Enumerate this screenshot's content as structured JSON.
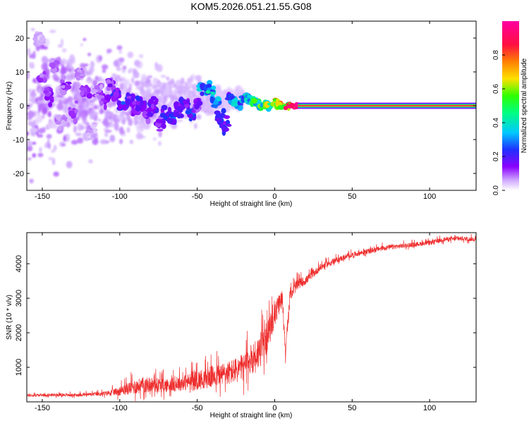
{
  "title": "KOM5.2026.051.21.55.G08",
  "chart_data": [
    {
      "type": "heatmap",
      "description_role": "spectrogram",
      "title": "KOM5.2026.051.21.55.G08",
      "xlabel": "Height of straight line (km)",
      "ylabel": "Frequency (Hz)",
      "xlim": [
        -160,
        130
      ],
      "ylim": [
        -25,
        25
      ],
      "xticks": [
        -150,
        -100,
        -50,
        0,
        50,
        100
      ],
      "yticks": [
        -20,
        -10,
        0,
        10,
        20
      ],
      "colorbar": {
        "label": "Normalized spectral amplitude",
        "range": [
          0,
          1
        ],
        "ticks": [
          "0.0",
          "0.2",
          "0.4",
          "0.6",
          "0.8"
        ],
        "colors": [
          "#ffffff",
          "#8b00ff",
          "#2030ff",
          "#00e0ff",
          "#00ff40",
          "#ffe000",
          "#ff8000",
          "#ff0060",
          "#ff00a0"
        ]
      },
      "features": {
        "noise_region_km": [
          -160,
          -30
        ],
        "transition_region_km": [
          -30,
          15
        ],
        "tone_region_km": [
          15,
          130
        ],
        "tone_frequency_hz": 0
      },
      "blobs": [
        {
          "x": -152,
          "y": 20,
          "a": 0.05
        },
        {
          "x": -150,
          "y": 8,
          "a": 0.1
        },
        {
          "x": -146,
          "y": 3,
          "a": 0.12
        },
        {
          "x": -142,
          "y": 12,
          "a": 0.08
        },
        {
          "x": -138,
          "y": -5,
          "a": 0.07
        },
        {
          "x": -135,
          "y": 6,
          "a": 0.12
        },
        {
          "x": -130,
          "y": -2,
          "a": 0.1
        },
        {
          "x": -126,
          "y": 9,
          "a": 0.09
        },
        {
          "x": -122,
          "y": 4,
          "a": 0.11
        },
        {
          "x": -118,
          "y": -8,
          "a": 0.06
        },
        {
          "x": -114,
          "y": 5,
          "a": 0.1
        },
        {
          "x": -110,
          "y": 2,
          "a": 0.12
        },
        {
          "x": -106,
          "y": 6,
          "a": 0.13
        },
        {
          "x": -102,
          "y": 3,
          "a": 0.2
        },
        {
          "x": -98,
          "y": 0,
          "a": 0.22
        },
        {
          "x": -94,
          "y": 2,
          "a": 0.18
        },
        {
          "x": -90,
          "y": -1,
          "a": 0.12
        },
        {
          "x": -86,
          "y": 1,
          "a": 0.2
        },
        {
          "x": -82,
          "y": -3,
          "a": 0.15
        },
        {
          "x": -78,
          "y": 0,
          "a": 0.16
        },
        {
          "x": -74,
          "y": -5,
          "a": 0.14
        },
        {
          "x": -70,
          "y": -2,
          "a": 0.2
        },
        {
          "x": -66,
          "y": -4,
          "a": 0.22
        },
        {
          "x": -62,
          "y": -1,
          "a": 0.16
        },
        {
          "x": -58,
          "y": 1,
          "a": 0.2
        },
        {
          "x": -54,
          "y": -2,
          "a": 0.22
        },
        {
          "x": -50,
          "y": 0,
          "a": 0.14
        },
        {
          "x": -46,
          "y": 5,
          "a": 0.3
        },
        {
          "x": -42,
          "y": 5,
          "a": 0.35
        },
        {
          "x": -38,
          "y": 1,
          "a": 0.28
        },
        {
          "x": -35,
          "y": -3,
          "a": 0.22
        },
        {
          "x": -32,
          "y": -6,
          "a": 0.2
        },
        {
          "x": -28,
          "y": 2,
          "a": 0.25
        },
        {
          "x": -24,
          "y": 1,
          "a": 0.3
        },
        {
          "x": -20,
          "y": 2,
          "a": 0.3
        },
        {
          "x": -16,
          "y": 2,
          "a": 0.4
        },
        {
          "x": -12,
          "y": 1,
          "a": 0.45
        },
        {
          "x": -8,
          "y": 0,
          "a": 0.5
        },
        {
          "x": -4,
          "y": 0,
          "a": 0.55
        },
        {
          "x": 0,
          "y": 1,
          "a": 0.6
        },
        {
          "x": 4,
          "y": 0,
          "a": 0.65
        },
        {
          "x": 8,
          "y": 0,
          "a": 0.7
        },
        {
          "x": 12,
          "y": 0,
          "a": 0.8
        }
      ]
    },
    {
      "type": "line",
      "description_role": "snr-trace",
      "xlabel": "Height of straight line (km)",
      "ylabel": "SNR (10 * v/v)",
      "xlim": [
        -160,
        130
      ],
      "ylim": [
        0,
        4900
      ],
      "xticks": [
        -150,
        -100,
        -50,
        0,
        50,
        100
      ],
      "yticks": [
        1000,
        2000,
        3000,
        4000
      ],
      "series": [
        {
          "name": "SNR",
          "color": "#ee2e2e",
          "x": [
            -160,
            -150,
            -140,
            -130,
            -120,
            -110,
            -100,
            -90,
            -80,
            -70,
            -60,
            -50,
            -40,
            -30,
            -20,
            -15,
            -10,
            -5,
            0,
            5,
            7,
            10,
            15,
            20,
            25,
            30,
            35,
            40,
            50,
            60,
            70,
            80,
            90,
            100,
            110,
            120,
            130
          ],
          "y": [
            180,
            190,
            200,
            190,
            210,
            230,
            300,
            420,
            480,
            450,
            520,
            600,
            700,
            800,
            950,
            1200,
            1400,
            1800,
            2500,
            3000,
            1400,
            3100,
            3400,
            3500,
            3700,
            3900,
            4000,
            4100,
            4250,
            4350,
            4450,
            4500,
            4550,
            4600,
            4700,
            4720,
            4700
          ],
          "spread": [
            80,
            80,
            90,
            90,
            100,
            120,
            250,
            450,
            450,
            400,
            450,
            550,
            650,
            700,
            800,
            900,
            1000,
            900,
            700,
            500,
            300,
            400,
            300,
            250,
            220,
            200,
            180,
            160,
            150,
            150,
            140,
            140,
            130,
            130,
            130,
            130,
            130
          ]
        }
      ]
    }
  ]
}
